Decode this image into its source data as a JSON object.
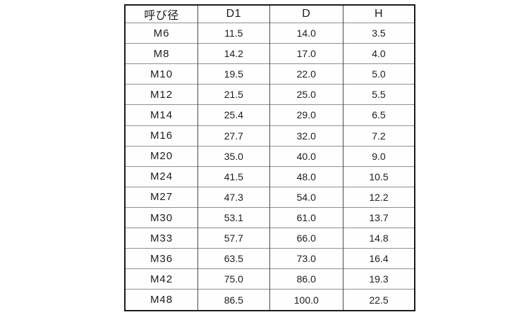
{
  "chart_data": {
    "type": "table",
    "title": "",
    "columns": [
      "呼び径",
      "D1",
      "D",
      "H"
    ],
    "rows": [
      [
        "M6",
        "11.5",
        "14.0",
        "3.5"
      ],
      [
        "M8",
        "14.2",
        "17.0",
        "4.0"
      ],
      [
        "M10",
        "19.5",
        "22.0",
        "5.0"
      ],
      [
        "M12",
        "21.5",
        "25.0",
        "5.5"
      ],
      [
        "M14",
        "25.4",
        "29.0",
        "6.5"
      ],
      [
        "M16",
        "27.7",
        "32.0",
        "7.2"
      ],
      [
        "M20",
        "35.0",
        "40.0",
        "9.0"
      ],
      [
        "M24",
        "41.5",
        "48.0",
        "10.5"
      ],
      [
        "M27",
        "47.3",
        "54.0",
        "12.2"
      ],
      [
        "M30",
        "53.1",
        "61.0",
        "13.7"
      ],
      [
        "M33",
        "57.7",
        "66.0",
        "14.8"
      ],
      [
        "M36",
        "63.5",
        "73.0",
        "16.4"
      ],
      [
        "M42",
        "75.0",
        "86.0",
        "19.3"
      ],
      [
        "M48",
        "86.5",
        "100.0",
        "22.5"
      ]
    ],
    "layout": {
      "grid": "on",
      "outer_border_color": "#1b1b1b",
      "column_divider_color": "#4a4a4a",
      "row_divider_color": "#8f8f8f",
      "background_color": "#ffffff",
      "text_color": "#1c1c1c"
    }
  }
}
